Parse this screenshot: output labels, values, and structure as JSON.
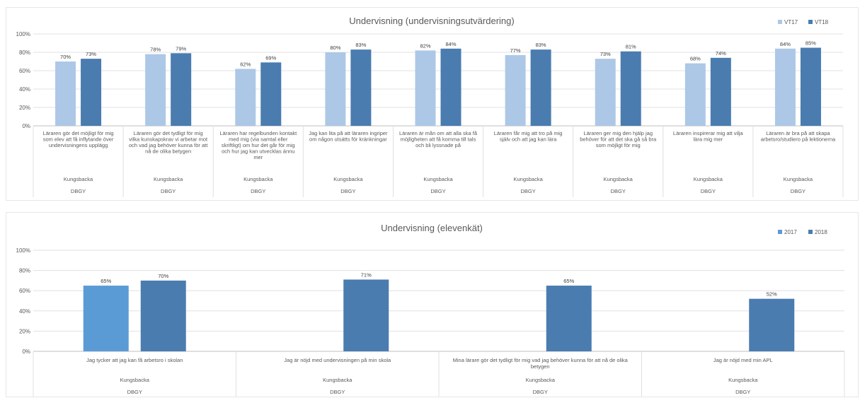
{
  "colors": {
    "chart1_series": [
      "#adc8e6",
      "#4a7cb0"
    ],
    "chart2_series": [
      "#5b9bd5",
      "#4a7cb0"
    ],
    "grid": "#e0e0e0",
    "axis": "#bfbfbf"
  },
  "chart_data": [
    {
      "type": "bar",
      "title": "Undervisning (undervisningsutvärdering)",
      "ylim": [
        0,
        100
      ],
      "yticks": [
        "0%",
        "20%",
        "40%",
        "60%",
        "80%",
        "100%"
      ],
      "grid": true,
      "legend_position": "top-right",
      "categories": [
        [
          "Läraren gör det möjligt för mig",
          "som elev att få inflytande över",
          "undervisningens upplägg"
        ],
        [
          "Läraren gör det tydligt för mig",
          "vilka kunskapskrav vi arbetar mot",
          "och vad jag behöver kunna för att",
          "nå de olika betygen"
        ],
        [
          "Läraren har regelbunden kontakt",
          "med mig (via samtal eller",
          "skriftligt) om hur det går för mig",
          "och hur jag kan utvecklas ännu",
          "mer"
        ],
        [
          "Jag kan lita på att läraren ingriper",
          "om någon utsätts för kränkningar"
        ],
        [
          "Läraren är mån om att alla ska få",
          "möjligheten att få komma till tals",
          "och bli lyssnade på"
        ],
        [
          "Läraren får mig att tro på mig",
          "själv och att jag kan lära"
        ],
        [
          "Läraren ger mig den hjälp jag",
          "behöver för att det ska gå så bra",
          "som möjligt för mig"
        ],
        [
          "Läraren inspirerar mig att vilja",
          "lära mig mer"
        ],
        [
          "Läraren är bra på att skapa",
          "arbetsro/studiero på lektionerna"
        ]
      ],
      "group_labels": [
        "Kungsbacka",
        "DBGY"
      ],
      "series": [
        {
          "name": "VT17",
          "values": [
            70,
            78,
            62,
            80,
            82,
            77,
            73,
            68,
            84
          ],
          "labels": [
            "70%",
            "78%",
            "62%",
            "80%",
            "82%",
            "77%",
            "73%",
            "68%",
            "84%"
          ]
        },
        {
          "name": "VT18",
          "values": [
            73,
            79,
            69,
            83,
            84,
            83,
            81,
            74,
            85
          ],
          "labels": [
            "73%",
            "79%",
            "69%",
            "83%",
            "84%",
            "83%",
            "81%",
            "74%",
            "85%"
          ]
        }
      ]
    },
    {
      "type": "bar",
      "title": "Undervisning (elevenkät)",
      "ylim": [
        0,
        100
      ],
      "yticks": [
        "0%",
        "20%",
        "40%",
        "60%",
        "80%",
        "100%"
      ],
      "grid": true,
      "legend_position": "top-right",
      "categories": [
        [
          "Jag tycker att jag kan få arbetsro i skolan"
        ],
        [
          "Jag är nöjd med undervisningen på min skola"
        ],
        [
          "Mina lärare gör det tydligt för mig vad jag behöver kunna för att nå de olika",
          "betygen"
        ],
        [
          "Jag är nöjd med min APL"
        ]
      ],
      "group_labels": [
        "Kungsbacka",
        "DBGY"
      ],
      "series": [
        {
          "name": "2017",
          "values": [
            65,
            null,
            null,
            null
          ],
          "labels": [
            "65%",
            "",
            "",
            ""
          ]
        },
        {
          "name": "2018",
          "values": [
            70,
            71,
            65,
            52
          ],
          "labels": [
            "70%",
            "71%",
            "65%",
            "52%"
          ]
        }
      ]
    }
  ]
}
